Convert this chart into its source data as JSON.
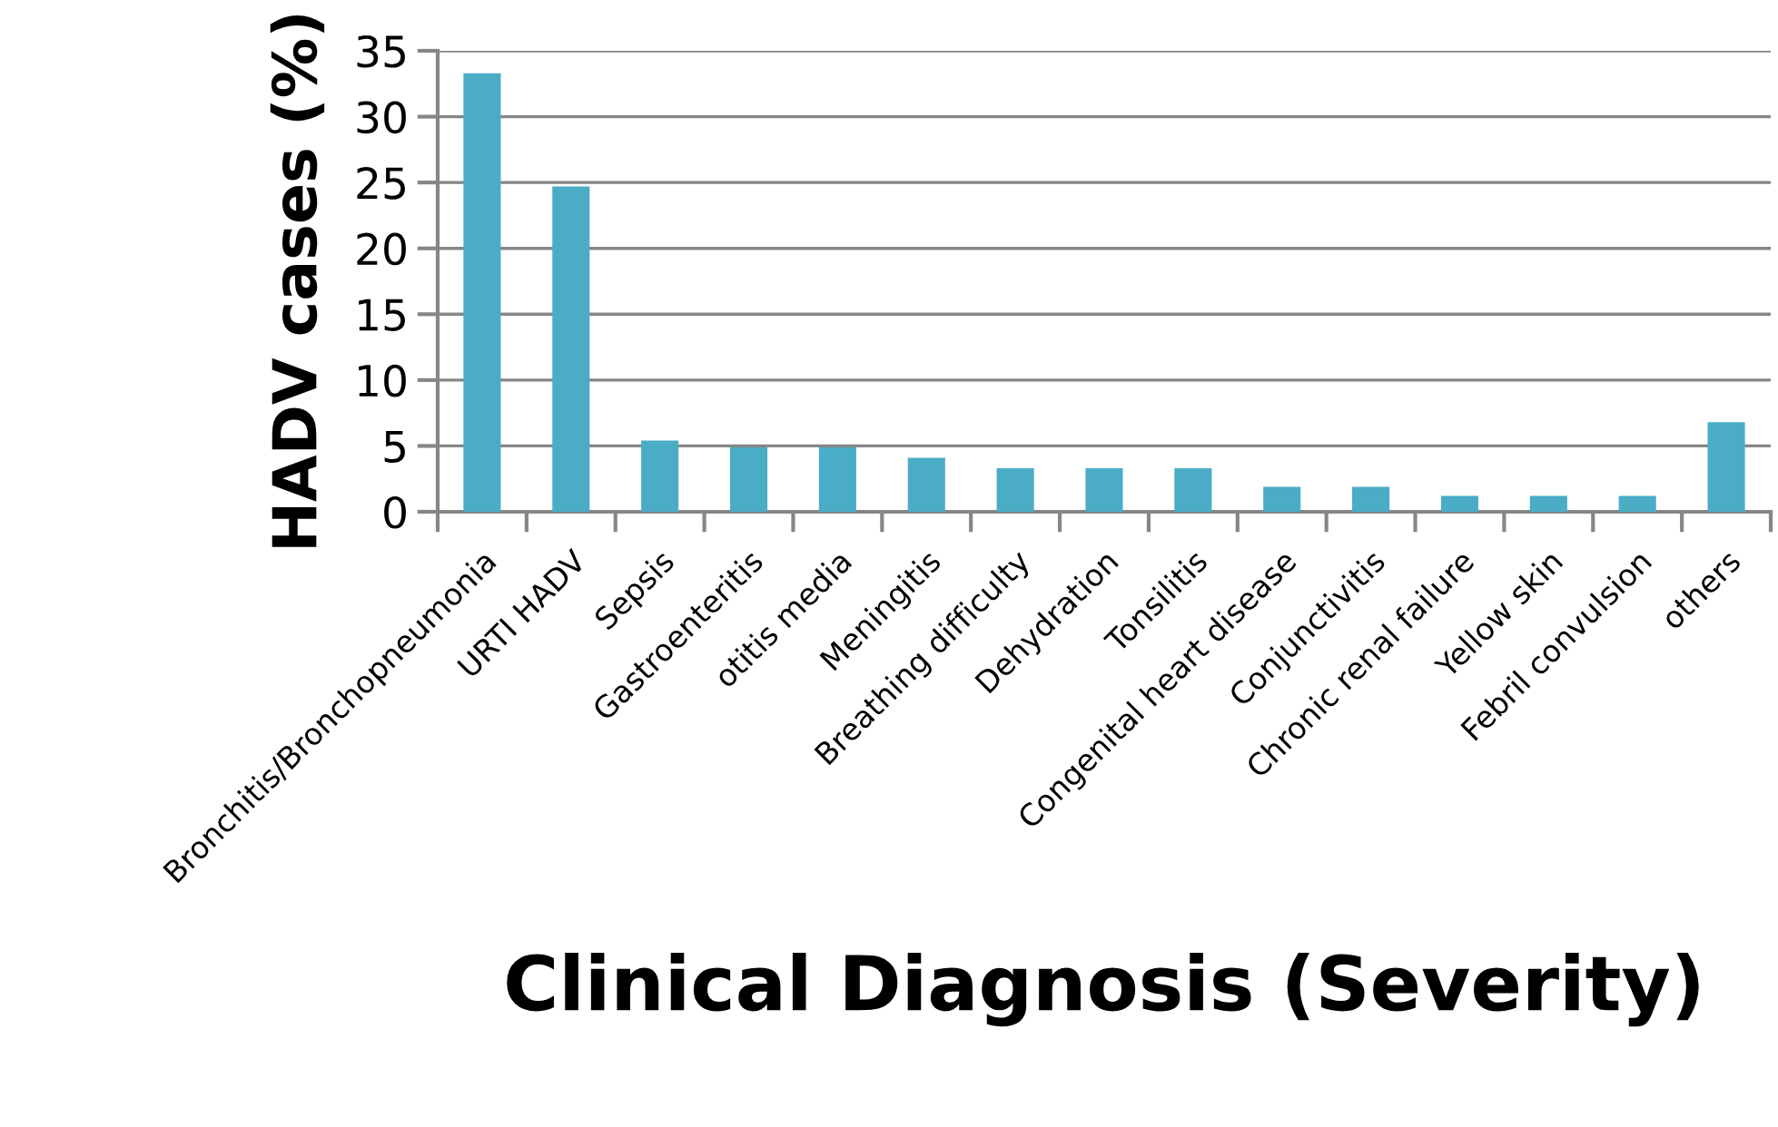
{
  "chart_data": {
    "type": "bar",
    "xlabel": "Clinical Diagnosis (Severity)",
    "ylabel": "HADV cases (%)",
    "categories": [
      "Bronchitis/Bronchopneumonia",
      "URTI HADV",
      "Sepsis",
      "Gastroenteritis",
      "otitis media",
      "Meningitis",
      "Breathing difficulty",
      "Dehydration",
      "Tonsilitis",
      "Congenital heart disease",
      "Conjunctivitis",
      "Chronic renal failure",
      "Yellow skin",
      "Febril convulsion",
      "others"
    ],
    "values": [
      33.3,
      24.7,
      5.4,
      4.9,
      4.9,
      4.1,
      3.3,
      3.3,
      3.3,
      1.9,
      1.9,
      1.2,
      1.2,
      1.2,
      6.8
    ],
    "color": "#4bacc6",
    "ylim": [
      0,
      35
    ],
    "yticks": [
      0,
      5,
      10,
      15,
      20,
      25,
      30,
      35
    ],
    "grid": "y"
  }
}
